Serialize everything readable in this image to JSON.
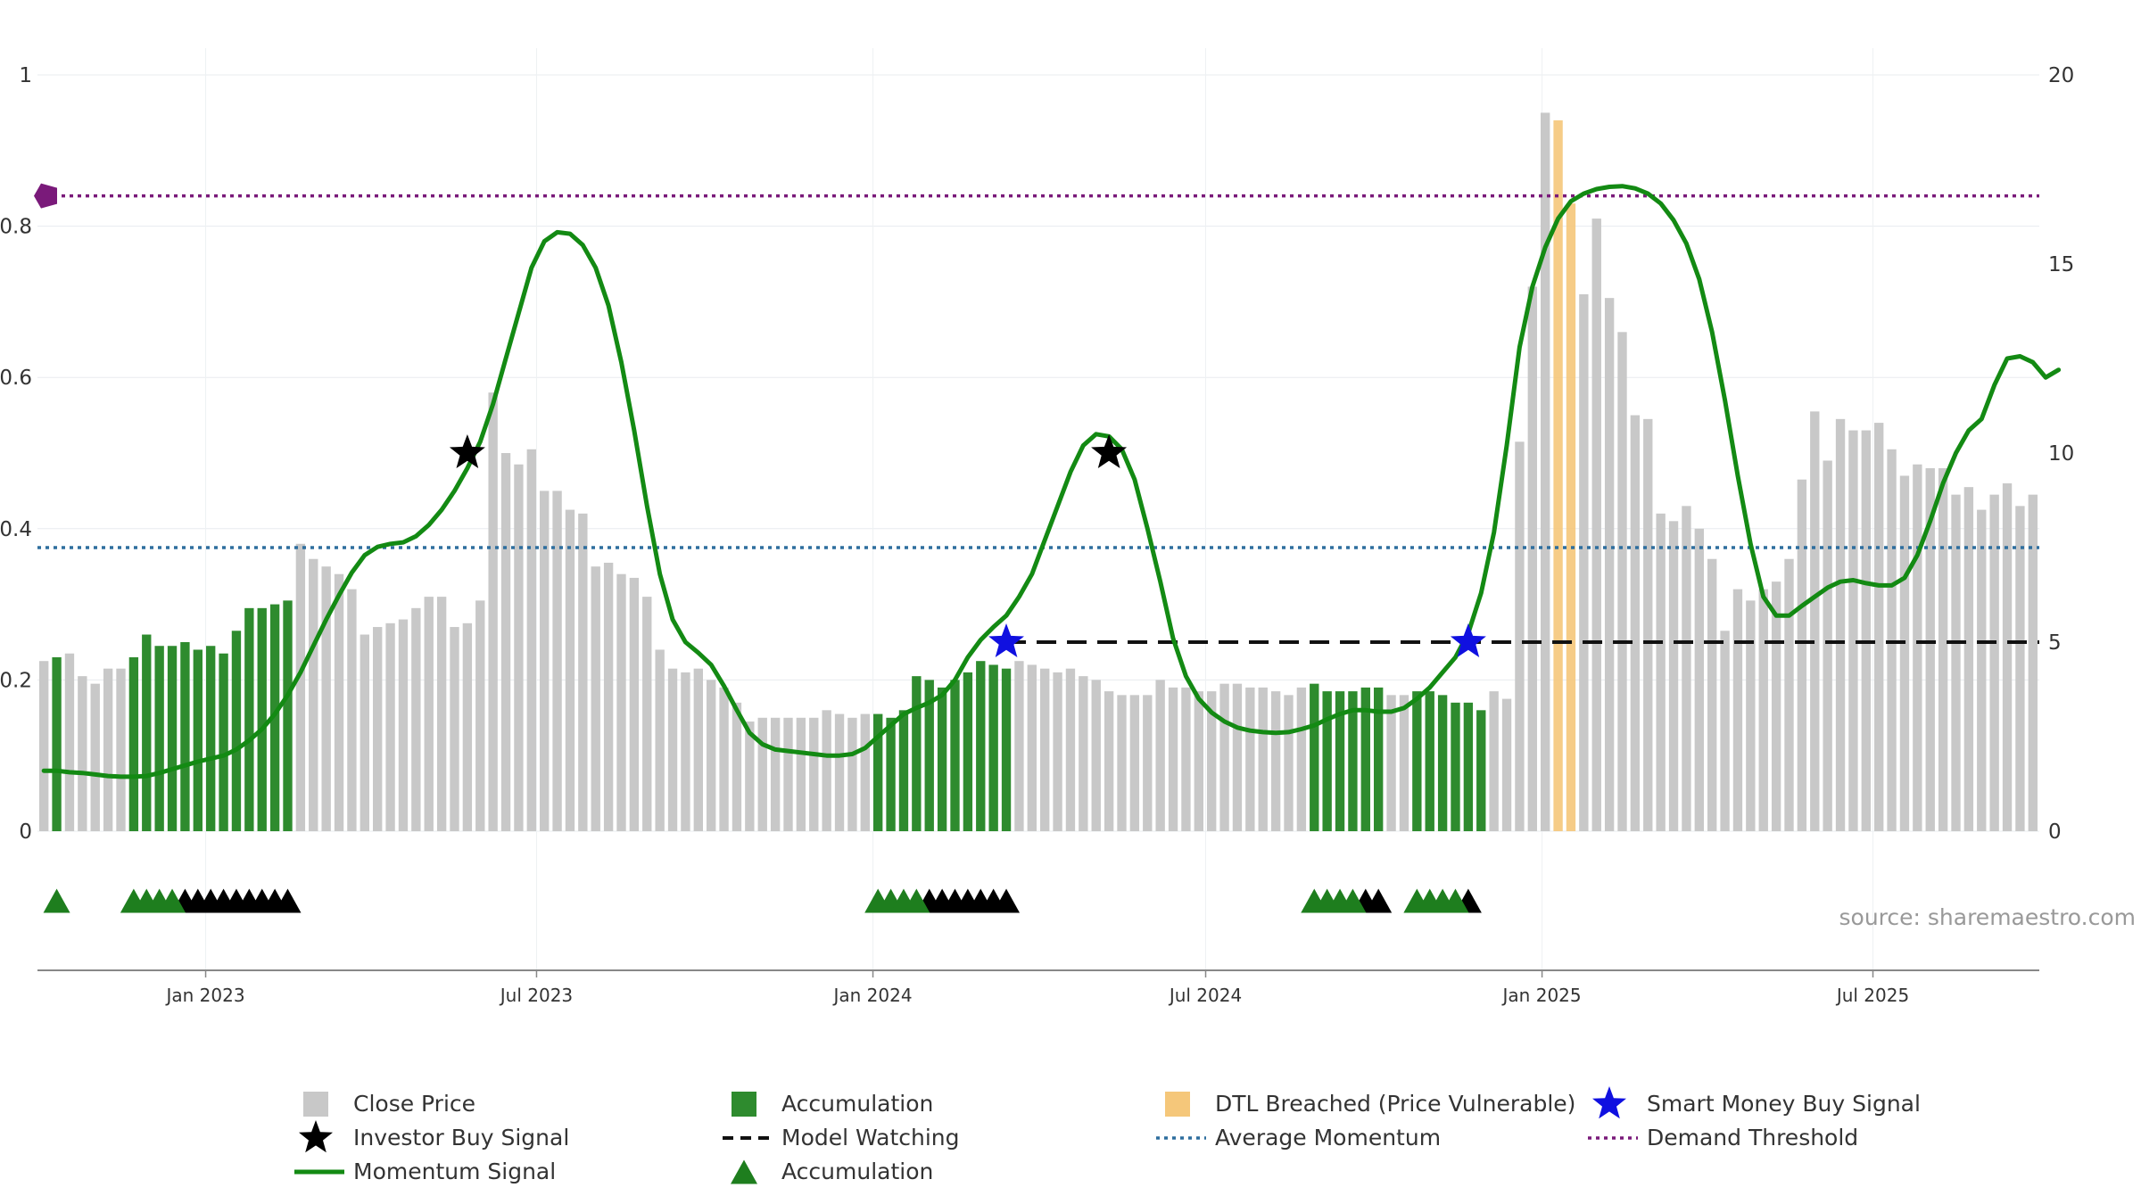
{
  "chart_data": {
    "type": "bar",
    "source": "source: sharemaestro.com",
    "y_left": {
      "ticks": [
        0,
        0.2,
        0.4,
        0.6,
        0.8,
        1
      ],
      "tick_labels": [
        "0",
        "0.2",
        "0.4",
        "0.6",
        "0.8",
        "1"
      ],
      "range": [
        0,
        1
      ]
    },
    "y_right": {
      "ticks": [
        0,
        5,
        10,
        15,
        20
      ],
      "tick_labels": [
        "0",
        "5",
        "10",
        "15",
        "20"
      ],
      "range": [
        0,
        20
      ]
    },
    "x_axis": {
      "start": "2022-10-01",
      "end": "2025-09-30",
      "ticks": [
        {
          "date": "2023-01-01",
          "label": "Jan 2023"
        },
        {
          "date": "2023-07-01",
          "label": "Jul 2023"
        },
        {
          "date": "2024-01-01",
          "label": "Jan 2024"
        },
        {
          "date": "2024-07-01",
          "label": "Jul 2024"
        },
        {
          "date": "2025-01-01",
          "label": "Jan 2025"
        },
        {
          "date": "2025-07-01",
          "label": "Jul 2025"
        }
      ]
    },
    "grid": true,
    "colors": {
      "close": "#c8c8c8",
      "accumulation": "#2e8b2e",
      "dtl": "#f5c77a",
      "momentum": "#138a13",
      "average": "#2e6e9e",
      "demand": "#7a1a7a",
      "watch": "#111111",
      "smart": "#1010e0",
      "investor": "#000000",
      "acc_marker": "#1e7e1e",
      "watch_marker": "#000000"
    },
    "close_price": [
      4.5,
      4.6,
      4.7,
      4.1,
      3.9,
      4.3,
      4.3,
      4.6,
      5.2,
      4.9,
      4.9,
      5.0,
      4.8,
      4.9,
      4.7,
      5.3,
      5.9,
      5.9,
      6.0,
      6.1,
      7.6,
      7.2,
      7.0,
      6.8,
      6.4,
      5.2,
      5.4,
      5.5,
      5.6,
      5.9,
      6.2,
      6.2,
      5.4,
      5.5,
      6.1,
      11.6,
      10.0,
      9.7,
      10.1,
      9.0,
      9.0,
      8.5,
      8.4,
      7.0,
      7.1,
      6.8,
      6.7,
      6.2,
      4.8,
      4.3,
      4.2,
      4.3,
      4.0,
      3.8,
      3.4,
      2.9,
      3.0,
      3.0,
      3.0,
      3.0,
      3.0,
      3.2,
      3.1,
      3.0,
      3.1,
      3.1,
      3.0,
      3.2,
      4.1,
      4.0,
      3.8,
      4.0,
      4.2,
      4.5,
      4.4,
      4.3,
      4.5,
      4.4,
      4.3,
      4.2,
      4.3,
      4.1,
      4.0,
      3.7,
      3.6,
      3.6,
      3.6,
      4.0,
      3.8,
      3.8,
      3.7,
      3.7,
      3.9,
      3.9,
      3.8,
      3.8,
      3.7,
      3.6,
      3.8,
      3.9,
      3.7,
      3.7,
      3.7,
      3.8,
      3.8,
      3.6,
      3.6,
      3.7,
      3.7,
      3.6,
      3.4,
      3.4,
      3.2,
      3.7,
      3.5,
      10.3,
      14.4,
      19.0,
      18.8,
      16.6,
      14.2,
      16.2,
      14.1,
      13.2,
      11.0,
      10.9,
      8.4,
      8.2,
      8.6,
      8.0,
      7.2,
      5.3,
      6.4,
      6.1,
      6.4,
      6.6,
      7.2,
      9.3,
      11.1,
      9.8,
      10.9,
      10.6,
      10.6,
      10.8,
      10.1,
      9.4,
      9.7,
      9.6,
      9.6,
      8.9,
      9.1,
      8.5,
      8.9,
      9.2,
      8.6,
      8.9
    ],
    "accumulation_ranges": [
      [
        1,
        1
      ],
      [
        7,
        19
      ],
      [
        65,
        75
      ],
      [
        99,
        104
      ],
      [
        107,
        112
      ]
    ],
    "dtl_breached_ranges": [
      [
        118,
        119
      ]
    ],
    "momentum": [
      0.08,
      0.08,
      0.078,
      0.077,
      0.075,
      0.073,
      0.072,
      0.072,
      0.073,
      0.077,
      0.082,
      0.087,
      0.092,
      0.096,
      0.1,
      0.108,
      0.12,
      0.135,
      0.155,
      0.18,
      0.21,
      0.245,
      0.28,
      0.312,
      0.342,
      0.365,
      0.376,
      0.38,
      0.382,
      0.39,
      0.405,
      0.425,
      0.45,
      0.48,
      0.515,
      0.565,
      0.625,
      0.685,
      0.745,
      0.78,
      0.792,
      0.79,
      0.775,
      0.745,
      0.695,
      0.62,
      0.53,
      0.43,
      0.34,
      0.28,
      0.25,
      0.236,
      0.22,
      0.192,
      0.16,
      0.13,
      0.115,
      0.108,
      0.106,
      0.104,
      0.102,
      0.1,
      0.1,
      0.102,
      0.11,
      0.125,
      0.14,
      0.155,
      0.163,
      0.17,
      0.18,
      0.2,
      0.23,
      0.253,
      0.27,
      0.285,
      0.31,
      0.34,
      0.385,
      0.43,
      0.475,
      0.51,
      0.525,
      0.522,
      0.505,
      0.465,
      0.4,
      0.33,
      0.255,
      0.205,
      0.175,
      0.157,
      0.145,
      0.137,
      0.133,
      0.131,
      0.13,
      0.131,
      0.135,
      0.14,
      0.148,
      0.155,
      0.16,
      0.16,
      0.158,
      0.158,
      0.163,
      0.175,
      0.19,
      0.21,
      0.23,
      0.262,
      0.315,
      0.395,
      0.51,
      0.64,
      0.72,
      0.772,
      0.81,
      0.833,
      0.843,
      0.849,
      0.852,
      0.853,
      0.85,
      0.843,
      0.83,
      0.808,
      0.777,
      0.73,
      0.66,
      0.57,
      0.47,
      0.38,
      0.31,
      0.285,
      0.285,
      0.298,
      0.31,
      0.322,
      0.33,
      0.332,
      0.328,
      0.325,
      0.325,
      0.335,
      0.365,
      0.41,
      0.46,
      0.5,
      0.53,
      0.545,
      0.59,
      0.625,
      0.628,
      0.62,
      0.6,
      0.61
    ],
    "average_momentum": 0.375,
    "demand_threshold": 0.84,
    "model_watching_level": 0.25,
    "model_watching_start": 75,
    "investor_buy_signals": [
      {
        "index": 33,
        "value": 0.5
      },
      {
        "index": 83,
        "value": 0.5
      }
    ],
    "smart_money_signals": [
      {
        "index": 75,
        "value": 0.25
      },
      {
        "index": 111,
        "value": 0.25
      }
    ],
    "accumulation_markers": [
      1,
      7,
      8,
      9,
      10,
      65,
      66,
      67,
      68,
      99,
      100,
      101,
      102,
      107,
      108,
      109,
      110
    ],
    "watching_markers": [
      11,
      12,
      13,
      14,
      15,
      16,
      17,
      18,
      19,
      69,
      70,
      71,
      72,
      73,
      74,
      75,
      103,
      104,
      111
    ],
    "legend": [
      {
        "key": "close",
        "label": "Close Price"
      },
      {
        "key": "accumulation",
        "label": "Accumulation"
      },
      {
        "key": "dtl",
        "label": "DTL Breached (Price Vulnerable)"
      },
      {
        "key": "smart",
        "label": "Smart Money Buy Signal"
      },
      {
        "key": "investor",
        "label": "Investor Buy Signal"
      },
      {
        "key": "watch",
        "label": "Model Watching"
      },
      {
        "key": "average",
        "label": "Average Momentum"
      },
      {
        "key": "demand",
        "label": "Demand Threshold"
      },
      {
        "key": "momentum",
        "label": "Momentum Signal"
      },
      {
        "key": "acc_marker",
        "label": "Accumulation"
      }
    ]
  }
}
